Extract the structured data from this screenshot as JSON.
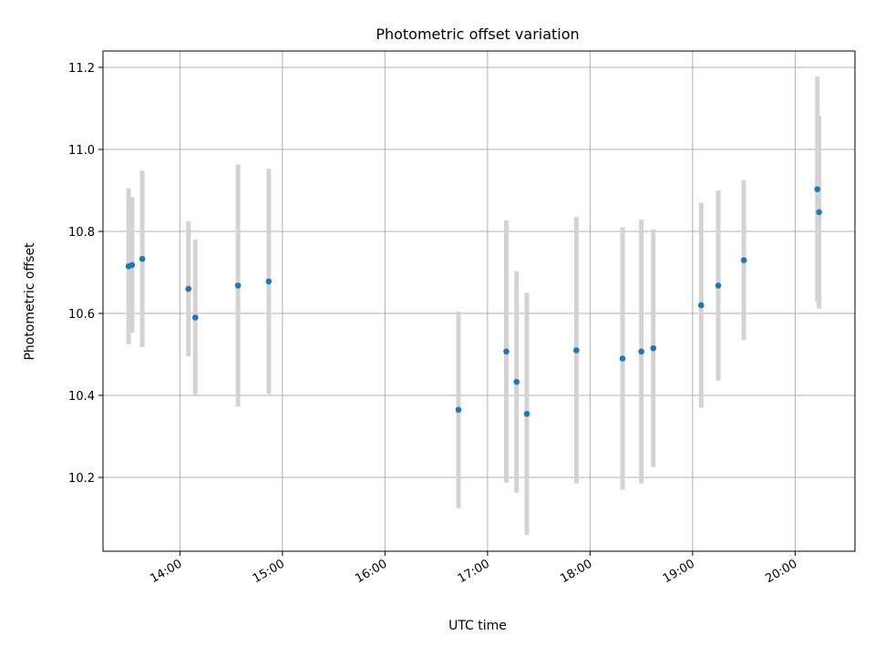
{
  "chart_data": {
    "type": "scatter",
    "title": "Photometric offset variation",
    "xlabel": "UTC time",
    "ylabel": "Photometric offset",
    "grid": true,
    "xlim": [
      "13:15",
      "20:35"
    ],
    "ylim": [
      10.02,
      11.24
    ],
    "xticks": [
      "14:00",
      "15:00",
      "16:00",
      "17:00",
      "18:00",
      "19:00",
      "20:00"
    ],
    "yticks": [
      "10.2",
      "10.4",
      "10.6",
      "10.8",
      "11.0",
      "11.2"
    ],
    "colors": {
      "point": "#1f77b4",
      "errorbar": "#d3d3d3"
    },
    "points": [
      {
        "x": "13:30",
        "y": 10.715,
        "yerr": 0.19
      },
      {
        "x": "13:32",
        "y": 10.718,
        "yerr": 0.165
      },
      {
        "x": "13:38",
        "y": 10.733,
        "yerr": 0.215
      },
      {
        "x": "14:05",
        "y": 10.66,
        "yerr": 0.165
      },
      {
        "x": "14:09",
        "y": 10.59,
        "yerr": 0.19
      },
      {
        "x": "14:34",
        "y": 10.668,
        "yerr": 0.295
      },
      {
        "x": "14:52",
        "y": 10.678,
        "yerr": 0.275
      },
      {
        "x": "16:43",
        "y": 10.365,
        "yerr": 0.24
      },
      {
        "x": "17:11",
        "y": 10.507,
        "yerr": 0.32
      },
      {
        "x": "17:17",
        "y": 10.433,
        "yerr": 0.27
      },
      {
        "x": "17:23",
        "y": 10.355,
        "yerr": 0.295
      },
      {
        "x": "17:52",
        "y": 10.51,
        "yerr": 0.325
      },
      {
        "x": "18:19",
        "y": 10.49,
        "yerr": 0.32
      },
      {
        "x": "18:30",
        "y": 10.507,
        "yerr": 0.322
      },
      {
        "x": "18:37",
        "y": 10.515,
        "yerr": 0.29
      },
      {
        "x": "19:05",
        "y": 10.62,
        "yerr": 0.25
      },
      {
        "x": "19:15",
        "y": 10.668,
        "yerr": 0.232
      },
      {
        "x": "19:30",
        "y": 10.73,
        "yerr": 0.195
      },
      {
        "x": "20:13",
        "y": 10.903,
        "yerr": 0.275
      },
      {
        "x": "20:14",
        "y": 10.847,
        "yerr": 0.235
      }
    ]
  }
}
